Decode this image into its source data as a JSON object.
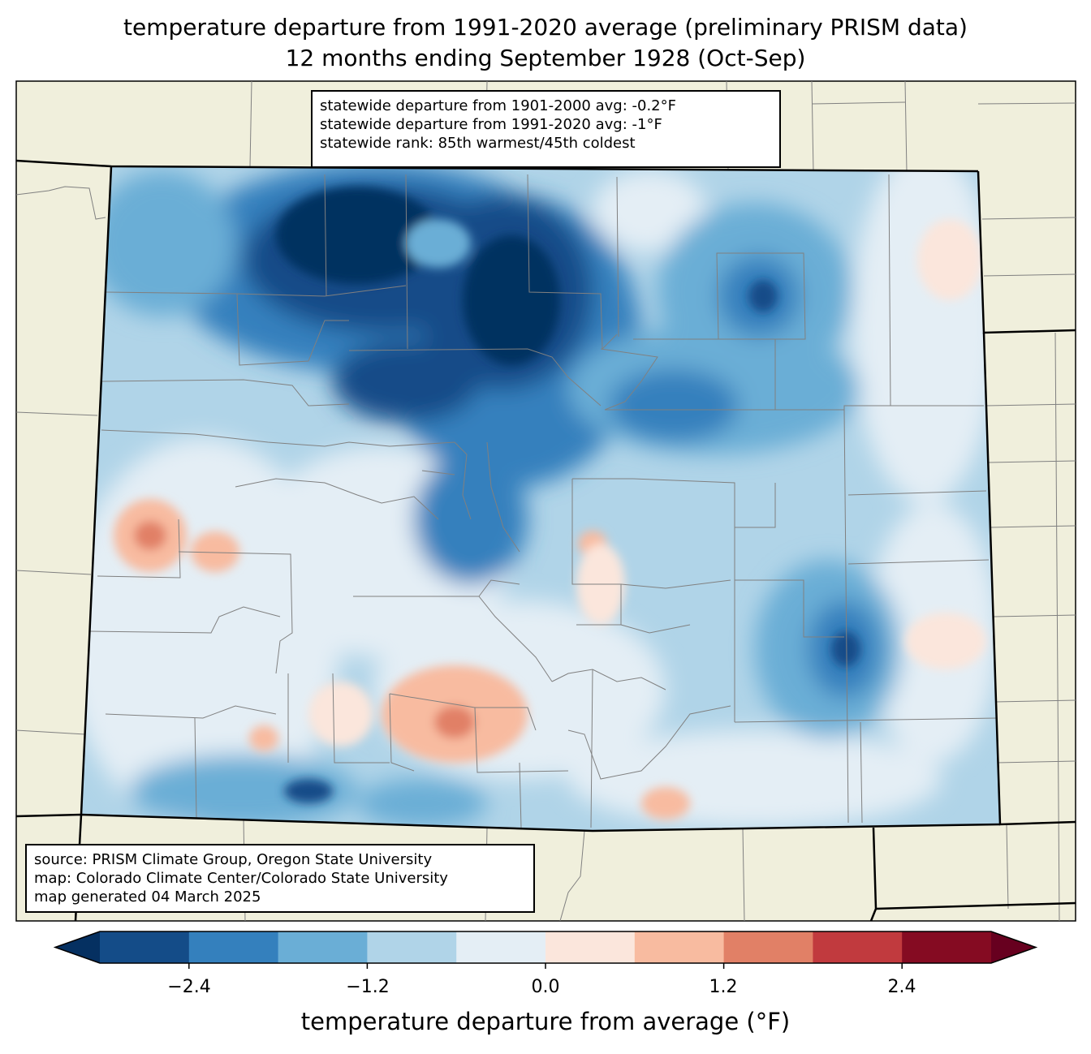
{
  "title": {
    "line1": "temperature departure from 1991-2020 average (preliminary PRISM data)",
    "line2": "12 months ending September 1928 (Oct-Sep)"
  },
  "stats": {
    "line1": "statewide departure from 1901-2000 avg: -0.2°F",
    "line2": "statewide departure from 1991-2020 avg: -1°F",
    "line3": "statewide rank: 85th warmest/45th coldest"
  },
  "source": {
    "line1": "source: PRISM Climate Group, Oregon State University",
    "line2": "map: Colorado Climate Center/Colorado State University",
    "line3": "map generated 04 March 2025"
  },
  "colorbar": {
    "label": "temperature departure from average (°F)",
    "ticks": [
      "−2.4",
      "−1.2",
      "0.0",
      "1.2",
      "2.4"
    ],
    "colors": [
      "#053061",
      "#144c88",
      "#3480bd",
      "#6aaed6",
      "#b0d4e8",
      "#e4eef5",
      "#fbe6dc",
      "#f8bba0",
      "#e18066",
      "#c13a3e",
      "#850b22",
      "#67001f"
    ]
  },
  "map_colors": {
    "land": "#f0efdc",
    "state_border": "#000000",
    "county_border": "#808080"
  }
}
